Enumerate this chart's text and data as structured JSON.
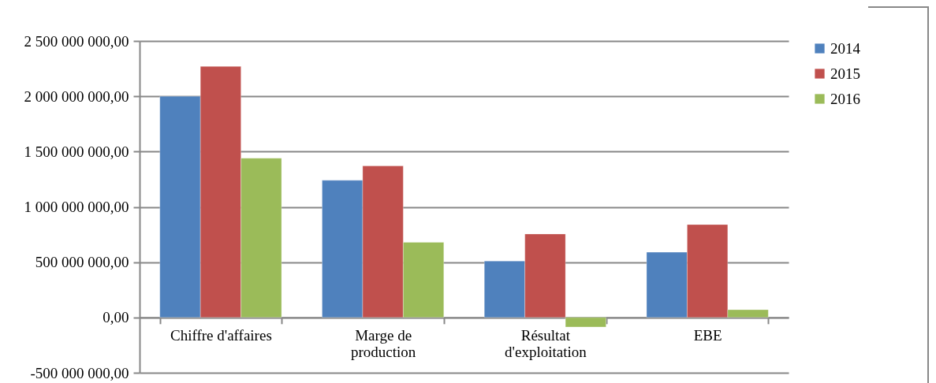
{
  "chart_data": {
    "type": "bar",
    "categories": [
      "Chiffre d'affaires",
      "Marge de production",
      "Résultat d'exploitation",
      "EBE"
    ],
    "series": [
      {
        "name": "2014",
        "color": "#4f81bd",
        "values": [
          2000000000,
          1240000000,
          510000000,
          590000000
        ]
      },
      {
        "name": "2015",
        "color": "#c0504d",
        "values": [
          2270000000,
          1370000000,
          755000000,
          840000000
        ]
      },
      {
        "name": "2016",
        "color": "#9bbb59",
        "values": [
          1440000000,
          680000000,
          -86000000,
          70000000
        ]
      }
    ],
    "ylim": [
      -500000000,
      2500000000
    ],
    "yticks": [
      {
        "value": -500000000,
        "label": "-500 000 000,00"
      },
      {
        "value": 0,
        "label": "0,00"
      },
      {
        "value": 500000000,
        "label": "500 000 000,00"
      },
      {
        "value": 1000000000,
        "label": "1 000 000 000,00"
      },
      {
        "value": 1500000000,
        "label": "1 500 000 000,00"
      },
      {
        "value": 2000000000,
        "label": "2 000 000 000,00"
      },
      {
        "value": 2500000000,
        "label": "2 500 000 000,00"
      }
    ],
    "grid": "y",
    "legend": "right"
  }
}
